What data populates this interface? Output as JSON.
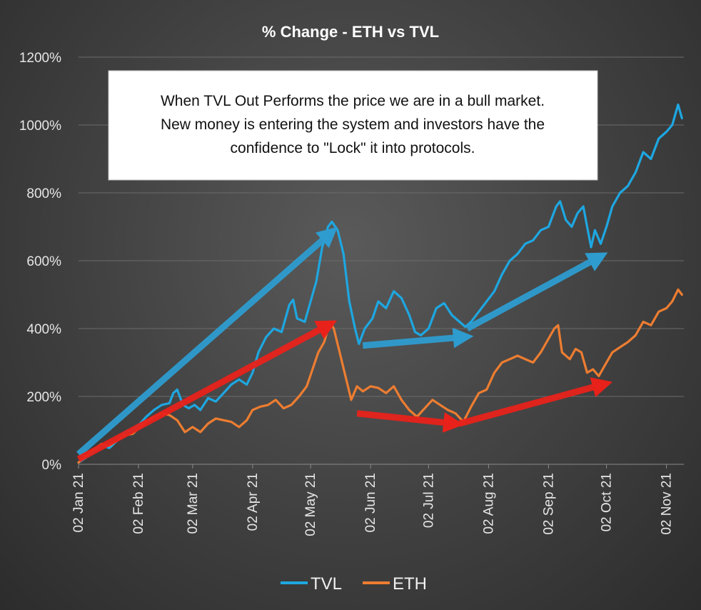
{
  "chart_data": {
    "type": "line",
    "title": "% Change - ETH vs TVL",
    "xlabel": "",
    "ylabel": "",
    "ylim": [
      0,
      1200
    ],
    "y_unit": "%",
    "y_ticks": [
      "0%",
      "200%",
      "400%",
      "600%",
      "800%",
      "1000%",
      "1200%"
    ],
    "x_ticks": [
      "02 Jan 21",
      "02 Feb 21",
      "02 Mar 21",
      "02 Apr 21",
      "02 May 21",
      "02 Jun 21",
      "02 Jul 21",
      "02 Aug 21",
      "02 Sep 21",
      "02 Oct 21",
      "02 Nov 21"
    ],
    "grid": true,
    "legend_position": "bottom",
    "colors": {
      "TVL": "#1ea7e1",
      "ETH": "#ed7d31",
      "arrow_blue": "#2e9ccf",
      "arrow_red": "#e8221b"
    },
    "series": [
      {
        "name": "TVL",
        "points": [
          [
            "2021-01-02",
            5
          ],
          [
            "2021-01-06",
            20
          ],
          [
            "2021-01-10",
            38
          ],
          [
            "2021-01-14",
            55
          ],
          [
            "2021-01-18",
            48
          ],
          [
            "2021-01-22",
            70
          ],
          [
            "2021-01-26",
            95
          ],
          [
            "2021-01-30",
            100
          ],
          [
            "2021-02-02",
            115
          ],
          [
            "2021-02-06",
            140
          ],
          [
            "2021-02-10",
            160
          ],
          [
            "2021-02-14",
            175
          ],
          [
            "2021-02-18",
            180
          ],
          [
            "2021-02-20",
            210
          ],
          [
            "2021-02-22",
            220
          ],
          [
            "2021-02-25",
            175
          ],
          [
            "2021-02-28",
            165
          ],
          [
            "2021-03-03",
            175
          ],
          [
            "2021-03-06",
            160
          ],
          [
            "2021-03-10",
            195
          ],
          [
            "2021-03-14",
            185
          ],
          [
            "2021-03-18",
            210
          ],
          [
            "2021-03-22",
            235
          ],
          [
            "2021-03-26",
            250
          ],
          [
            "2021-03-30",
            235
          ],
          [
            "2021-04-02",
            270
          ],
          [
            "2021-04-05",
            330
          ],
          [
            "2021-04-09",
            375
          ],
          [
            "2021-04-13",
            400
          ],
          [
            "2021-04-17",
            390
          ],
          [
            "2021-04-21",
            470
          ],
          [
            "2021-04-23",
            485
          ],
          [
            "2021-04-25",
            430
          ],
          [
            "2021-04-29",
            420
          ],
          [
            "2021-05-02",
            480
          ],
          [
            "2021-05-05",
            540
          ],
          [
            "2021-05-08",
            640
          ],
          [
            "2021-05-11",
            700
          ],
          [
            "2021-05-13",
            715
          ],
          [
            "2021-05-16",
            690
          ],
          [
            "2021-05-19",
            620
          ],
          [
            "2021-05-22",
            480
          ],
          [
            "2021-05-25",
            400
          ],
          [
            "2021-05-27",
            355
          ],
          [
            "2021-05-30",
            400
          ],
          [
            "2021-06-03",
            430
          ],
          [
            "2021-06-06",
            480
          ],
          [
            "2021-06-10",
            460
          ],
          [
            "2021-06-14",
            510
          ],
          [
            "2021-06-18",
            490
          ],
          [
            "2021-06-22",
            440
          ],
          [
            "2021-06-25",
            390
          ],
          [
            "2021-06-28",
            380
          ],
          [
            "2021-07-02",
            400
          ],
          [
            "2021-07-06",
            460
          ],
          [
            "2021-07-10",
            475
          ],
          [
            "2021-07-14",
            440
          ],
          [
            "2021-07-18",
            420
          ],
          [
            "2021-07-21",
            405
          ],
          [
            "2021-07-24",
            420
          ],
          [
            "2021-07-28",
            450
          ],
          [
            "2021-08-01",
            480
          ],
          [
            "2021-08-05",
            510
          ],
          [
            "2021-08-09",
            560
          ],
          [
            "2021-08-13",
            600
          ],
          [
            "2021-08-17",
            620
          ],
          [
            "2021-08-21",
            650
          ],
          [
            "2021-08-25",
            660
          ],
          [
            "2021-08-29",
            690
          ],
          [
            "2021-09-02",
            700
          ],
          [
            "2021-09-06",
            760
          ],
          [
            "2021-09-08",
            775
          ],
          [
            "2021-09-11",
            720
          ],
          [
            "2021-09-14",
            700
          ],
          [
            "2021-09-17",
            740
          ],
          [
            "2021-09-20",
            760
          ],
          [
            "2021-09-22",
            700
          ],
          [
            "2021-09-24",
            640
          ],
          [
            "2021-09-26",
            690
          ],
          [
            "2021-09-29",
            650
          ],
          [
            "2021-10-02",
            700
          ],
          [
            "2021-10-05",
            760
          ],
          [
            "2021-10-09",
            800
          ],
          [
            "2021-10-13",
            820
          ],
          [
            "2021-10-17",
            860
          ],
          [
            "2021-10-21",
            920
          ],
          [
            "2021-10-25",
            900
          ],
          [
            "2021-10-29",
            960
          ],
          [
            "2021-11-02",
            980
          ],
          [
            "2021-11-05",
            1000
          ],
          [
            "2021-11-08",
            1060
          ],
          [
            "2021-11-10",
            1020
          ]
        ]
      },
      {
        "name": "ETH",
        "points": [
          [
            "2021-01-02",
            5
          ],
          [
            "2021-01-06",
            25
          ],
          [
            "2021-01-10",
            45
          ],
          [
            "2021-01-14",
            60
          ],
          [
            "2021-01-18",
            55
          ],
          [
            "2021-01-22",
            70
          ],
          [
            "2021-01-26",
            85
          ],
          [
            "2021-01-30",
            90
          ],
          [
            "2021-02-02",
            105
          ],
          [
            "2021-02-06",
            125
          ],
          [
            "2021-02-10",
            140
          ],
          [
            "2021-02-14",
            150
          ],
          [
            "2021-02-18",
            145
          ],
          [
            "2021-02-22",
            130
          ],
          [
            "2021-02-26",
            95
          ],
          [
            "2021-03-02",
            110
          ],
          [
            "2021-03-06",
            95
          ],
          [
            "2021-03-10",
            120
          ],
          [
            "2021-03-14",
            135
          ],
          [
            "2021-03-18",
            130
          ],
          [
            "2021-03-22",
            125
          ],
          [
            "2021-03-26",
            110
          ],
          [
            "2021-03-30",
            130
          ],
          [
            "2021-04-02",
            160
          ],
          [
            "2021-04-06",
            170
          ],
          [
            "2021-04-10",
            175
          ],
          [
            "2021-04-14",
            190
          ],
          [
            "2021-04-18",
            165
          ],
          [
            "2021-04-22",
            175
          ],
          [
            "2021-04-26",
            200
          ],
          [
            "2021-04-30",
            230
          ],
          [
            "2021-05-03",
            280
          ],
          [
            "2021-05-06",
            330
          ],
          [
            "2021-05-09",
            360
          ],
          [
            "2021-05-12",
            420
          ],
          [
            "2021-05-14",
            400
          ],
          [
            "2021-05-17",
            330
          ],
          [
            "2021-05-20",
            260
          ],
          [
            "2021-05-23",
            190
          ],
          [
            "2021-05-26",
            230
          ],
          [
            "2021-05-29",
            215
          ],
          [
            "2021-06-02",
            230
          ],
          [
            "2021-06-06",
            225
          ],
          [
            "2021-06-10",
            210
          ],
          [
            "2021-06-14",
            230
          ],
          [
            "2021-06-18",
            190
          ],
          [
            "2021-06-22",
            160
          ],
          [
            "2021-06-26",
            140
          ],
          [
            "2021-06-30",
            165
          ],
          [
            "2021-07-04",
            190
          ],
          [
            "2021-07-08",
            175
          ],
          [
            "2021-07-12",
            160
          ],
          [
            "2021-07-16",
            150
          ],
          [
            "2021-07-20",
            125
          ],
          [
            "2021-07-24",
            170
          ],
          [
            "2021-07-28",
            210
          ],
          [
            "2021-08-01",
            220
          ],
          [
            "2021-08-05",
            270
          ],
          [
            "2021-08-09",
            300
          ],
          [
            "2021-08-13",
            310
          ],
          [
            "2021-08-17",
            320
          ],
          [
            "2021-08-21",
            310
          ],
          [
            "2021-08-25",
            300
          ],
          [
            "2021-08-29",
            330
          ],
          [
            "2021-09-03",
            380
          ],
          [
            "2021-09-05",
            400
          ],
          [
            "2021-09-07",
            410
          ],
          [
            "2021-09-09",
            330
          ],
          [
            "2021-09-13",
            310
          ],
          [
            "2021-09-16",
            340
          ],
          [
            "2021-09-19",
            330
          ],
          [
            "2021-09-22",
            270
          ],
          [
            "2021-09-25",
            280
          ],
          [
            "2021-09-28",
            260
          ],
          [
            "2021-10-02",
            300
          ],
          [
            "2021-10-05",
            330
          ],
          [
            "2021-10-09",
            345
          ],
          [
            "2021-10-13",
            360
          ],
          [
            "2021-10-17",
            380
          ],
          [
            "2021-10-21",
            420
          ],
          [
            "2021-10-25",
            410
          ],
          [
            "2021-10-29",
            450
          ],
          [
            "2021-11-02",
            460
          ],
          [
            "2021-11-05",
            480
          ],
          [
            "2021-11-08",
            515
          ],
          [
            "2021-11-10",
            500
          ]
        ]
      }
    ],
    "annotation": {
      "lines": [
        "When TVL Out Performs the price we are in a bull market.",
        "New money is entering the system and investors have the",
        "confidence to \"Lock\" it into protocols."
      ]
    },
    "arrows": [
      {
        "color": "blue",
        "from": [
          "2021-01-02",
          30
        ],
        "to": [
          "2021-05-12",
          680
        ]
      },
      {
        "color": "blue",
        "from": [
          "2021-05-29",
          350
        ],
        "to": [
          "2021-07-20",
          375
        ]
      },
      {
        "color": "blue",
        "from": [
          "2021-07-22",
          400
        ],
        "to": [
          "2021-09-28",
          610
        ]
      },
      {
        "color": "red",
        "from": [
          "2021-01-02",
          15
        ],
        "to": [
          "2021-05-11",
          410
        ]
      },
      {
        "color": "red",
        "from": [
          "2021-05-26",
          150
        ],
        "to": [
          "2021-07-15",
          120
        ]
      },
      {
        "color": "red",
        "from": [
          "2021-07-18",
          120
        ],
        "to": [
          "2021-09-30",
          235
        ]
      }
    ]
  }
}
